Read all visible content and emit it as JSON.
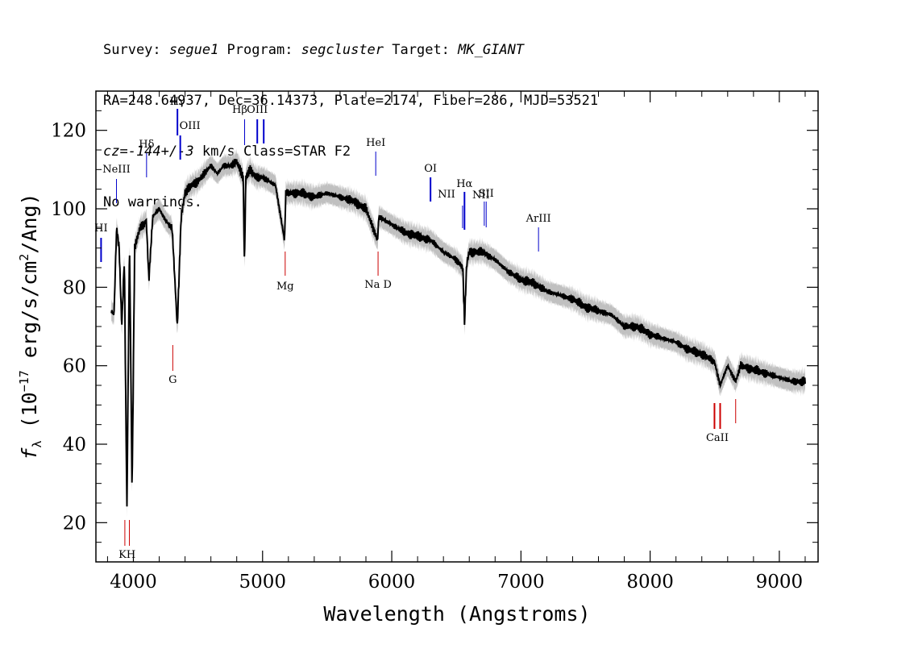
{
  "header": {
    "line1": {
      "survey_label": "Survey: ",
      "survey": "segue1",
      "program_label": " Program: ",
      "program": "segcluster",
      "target_label": " Target: ",
      "target": "MK_GIANT"
    },
    "line2": "RA=248.64937, Dec=36.14373, Plate=2174, Fiber=286, MJD=53521",
    "line3": {
      "cz": "cz=-144+/-3",
      "rest": " km/s Class=STAR F2"
    },
    "line4": "No warnings."
  },
  "chart_data": {
    "type": "line",
    "xlabel": "Wavelength (Angstroms)",
    "ylabel": "f_λ (10^-17 erg/s/cm^2/Ang)",
    "xlim": [
      3710,
      9300
    ],
    "ylim": [
      10,
      130
    ],
    "xticks": [
      4000,
      5000,
      6000,
      7000,
      8000,
      9000
    ],
    "yticks": [
      20,
      40,
      60,
      80,
      100,
      120
    ],
    "series": [
      {
        "color": "#000000",
        "x": [
          3830,
          3850,
          3870,
          3890,
          3910,
          3930,
          3950,
          3970,
          3990,
          4010,
          4050,
          4080,
          4100,
          4120,
          4150,
          4200,
          4250,
          4300,
          4340,
          4370,
          4400,
          4450,
          4500,
          4550,
          4600,
          4650,
          4700,
          4750,
          4800,
          4850,
          4860,
          4870,
          4900,
          4950,
          5000,
          5100,
          5170,
          5180,
          5200,
          5300,
          5400,
          5500,
          5600,
          5700,
          5800,
          5890,
          5900,
          6000,
          6100,
          6200,
          6300,
          6400,
          6500,
          6550,
          6563,
          6580,
          6600,
          6700,
          6800,
          6900,
          7000,
          7100,
          7200,
          7300,
          7400,
          7500,
          7600,
          7700,
          7800,
          7900,
          8000,
          8100,
          8200,
          8300,
          8400,
          8498,
          8542,
          8600,
          8662,
          8700,
          8800,
          8900,
          9000,
          9100,
          9200
        ],
        "y": [
          74,
          73,
          95,
          90,
          70,
          87,
          23,
          92,
          28,
          90,
          95,
          96,
          97,
          82,
          98,
          100,
          97,
          95,
          70,
          98,
          104,
          106,
          107,
          109,
          111,
          109,
          111,
          111,
          112,
          108,
          85,
          108,
          110,
          108,
          108,
          106,
          92,
          104,
          104,
          104,
          103,
          104,
          103,
          102,
          100,
          92,
          98,
          96,
          94,
          93,
          92,
          89,
          87,
          85,
          71,
          86,
          89,
          89,
          87,
          84,
          82,
          81,
          79,
          78,
          77,
          75,
          74,
          73,
          70,
          70,
          68,
          67,
          66,
          64,
          63,
          61,
          55,
          60,
          56,
          60,
          59,
          58,
          57,
          56,
          56
        ]
      }
    ],
    "error_band_color": "#c0c0c0",
    "lines": [
      {
        "label": "HI",
        "color": "#0000cc",
        "wavelength": 3750,
        "kind": "emission"
      },
      {
        "label": "NeIII",
        "color": "#0000cc",
        "wavelength": 3869,
        "kind": "emission"
      },
      {
        "label": "Hδ",
        "color": "#0000cc",
        "wavelength": 4102,
        "kind": "emission"
      },
      {
        "label": "Hγ",
        "color": "#0000cc",
        "wavelength": 4341,
        "kind": "emission"
      },
      {
        "label": "OIII",
        "color": "#0000cc",
        "wavelength": 4363,
        "kind": "emission"
      },
      {
        "label": "Hβ",
        "color": "#0000cc",
        "wavelength": 4861,
        "kind": "emission"
      },
      {
        "label": "OIII",
        "color": "#0000cc",
        "wavelength": 4959,
        "kind": "emission"
      },
      {
        "label": "HeI",
        "color": "#0000cc",
        "wavelength": 5876,
        "kind": "emission"
      },
      {
        "label": "OI",
        "color": "#0000cc",
        "wavelength": 6300,
        "kind": "emission"
      },
      {
        "label": "NII",
        "color": "#0000cc",
        "wavelength": 6548,
        "kind": "emission"
      },
      {
        "label": "Hα",
        "color": "#0000cc",
        "wavelength": 6563,
        "kind": "emission"
      },
      {
        "label": "NII",
        "color": "#0000cc",
        "wavelength": 6716,
        "kind": "emission"
      },
      {
        "label": "SII",
        "color": "#0000cc",
        "wavelength": 6731,
        "kind": "emission"
      },
      {
        "label": "ArIII",
        "color": "#0000cc",
        "wavelength": 7136,
        "kind": "emission"
      },
      {
        "label": "KH",
        "color": "#cc0000",
        "wavelength": 3950,
        "kind": "absorption"
      },
      {
        "label": "G",
        "color": "#cc0000",
        "wavelength": 4305,
        "kind": "absorption"
      },
      {
        "label": "Mg",
        "color": "#cc0000",
        "wavelength": 5175,
        "kind": "absorption"
      },
      {
        "label": "Na D",
        "color": "#cc0000",
        "wavelength": 5894,
        "kind": "absorption"
      },
      {
        "label": "CaII",
        "color": "#cc0000",
        "wavelength": 8542,
        "kind": "absorption"
      }
    ]
  }
}
